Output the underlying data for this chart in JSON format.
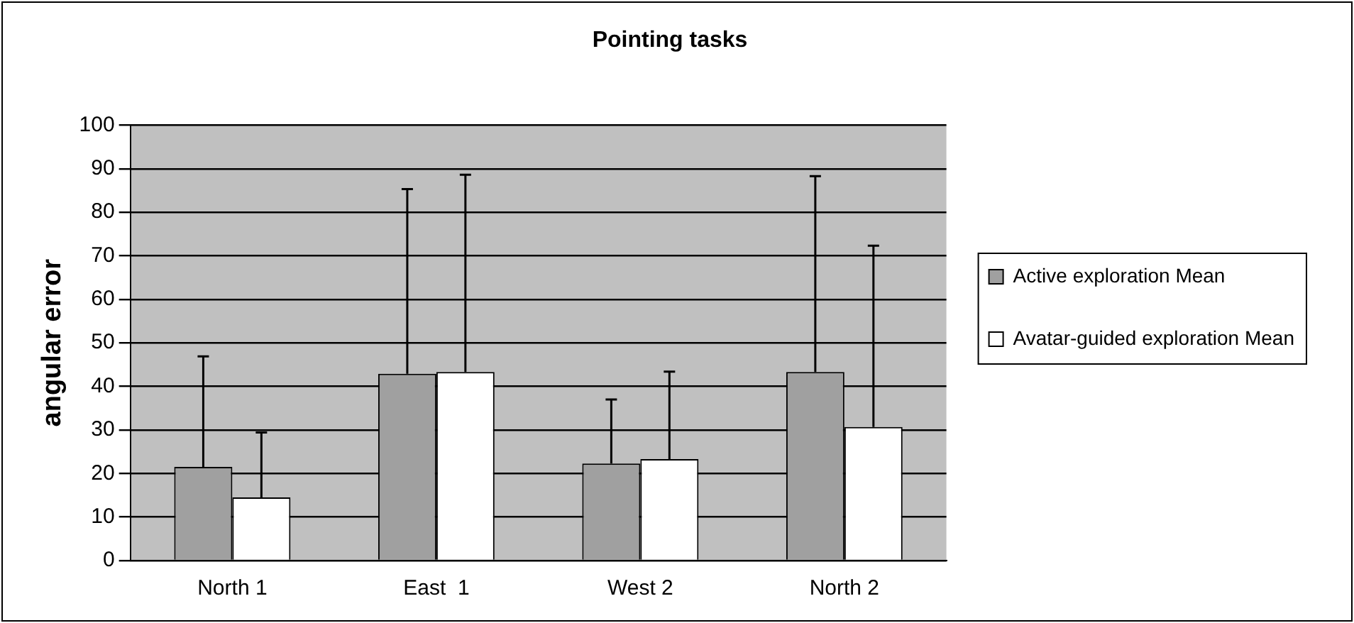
{
  "chart_data": {
    "type": "bar",
    "title": "Pointing tasks",
    "ylabel": "angular error",
    "categories": [
      "North 1",
      "East  1",
      "West 2",
      "North 2"
    ],
    "series": [
      {
        "name": "Active exploration Mean",
        "color": "#a0a0a0",
        "values": [
          21.5,
          42.9,
          22.3,
          43.3
        ],
        "errors": [
          [
            21.5,
            46.9
          ],
          [
            42.9,
            85.3
          ],
          [
            22.3,
            37.0
          ],
          [
            43.3,
            88.3
          ]
        ]
      },
      {
        "name": "Avatar-guided exploration Mean",
        "color": "#ffffff",
        "values": [
          14.5,
          43.3,
          23.3,
          30.7
        ],
        "errors": [
          [
            14.5,
            29.4
          ],
          [
            43.3,
            88.6
          ],
          [
            23.3,
            43.4
          ],
          [
            30.7,
            72.3
          ]
        ]
      }
    ],
    "ylim": [
      0,
      100
    ],
    "yticks": [
      0,
      10,
      20,
      30,
      40,
      50,
      60,
      70,
      80,
      90,
      100
    ],
    "grid": "y",
    "legend": "right"
  }
}
